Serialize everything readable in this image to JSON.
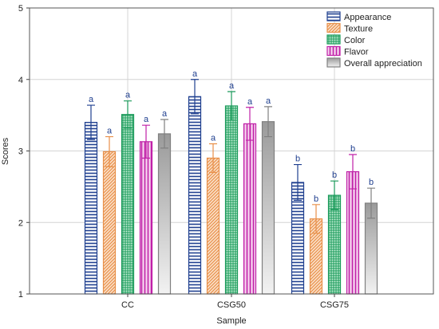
{
  "chart_data": {
    "type": "bar",
    "xlabel": "Sample",
    "ylabel": "Scores",
    "ylim": [
      1,
      5
    ],
    "yticks": [
      1,
      2,
      3,
      4,
      5
    ],
    "grid": true,
    "legend_position": "top-right",
    "categories": [
      "CC",
      "CSG50",
      "CSG75"
    ],
    "series": [
      {
        "name": "Appearance",
        "color": "#1f3f8f",
        "pattern": "horizontal-lines",
        "values": [
          3.4,
          3.76,
          2.56
        ],
        "errors": [
          0.24,
          0.24,
          0.25
        ],
        "letters": [
          "a",
          "a",
          "b"
        ]
      },
      {
        "name": "Texture",
        "color": "#e8904a",
        "pattern": "diagonal-lines",
        "values": [
          2.99,
          2.9,
          2.05
        ],
        "errors": [
          0.21,
          0.2,
          0.2
        ],
        "letters": [
          "a",
          "a",
          "b"
        ]
      },
      {
        "name": "Color",
        "color": "#1a9a5a",
        "pattern": "crosshatch",
        "values": [
          3.51,
          3.63,
          2.38
        ],
        "errors": [
          0.19,
          0.2,
          0.2
        ],
        "letters": [
          "a",
          "a",
          "b"
        ]
      },
      {
        "name": "Flavor",
        "color": "#c020a8",
        "pattern": "vertical-lines",
        "values": [
          3.13,
          3.38,
          2.71
        ],
        "errors": [
          0.23,
          0.23,
          0.24
        ],
        "letters": [
          "a",
          "a",
          "b"
        ]
      },
      {
        "name": "Overall appreciation",
        "color": "#808080",
        "pattern": "gradient",
        "values": [
          3.24,
          3.41,
          2.27
        ],
        "errors": [
          0.2,
          0.21,
          0.21
        ],
        "letters": [
          "a",
          "a",
          "b"
        ]
      }
    ]
  }
}
